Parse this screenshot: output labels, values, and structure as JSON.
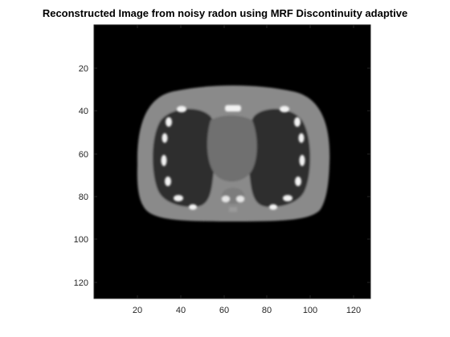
{
  "figure": {
    "title": "Reconstructed Image from noisy radon using MRF Discontinuity adaptive"
  },
  "axes": {
    "x_ticks": [
      "20",
      "40",
      "60",
      "80",
      "100",
      "120"
    ],
    "y_ticks": [
      "20",
      "40",
      "60",
      "80",
      "100",
      "120"
    ],
    "image_size": 128,
    "colormap": "gray",
    "colors": {
      "background": "#000000",
      "soft_tissue": "#8a8a8a",
      "lung": "#2f2f2f",
      "bone": "#f2f2f2",
      "mediastinum": "#6f6f6f"
    }
  }
}
